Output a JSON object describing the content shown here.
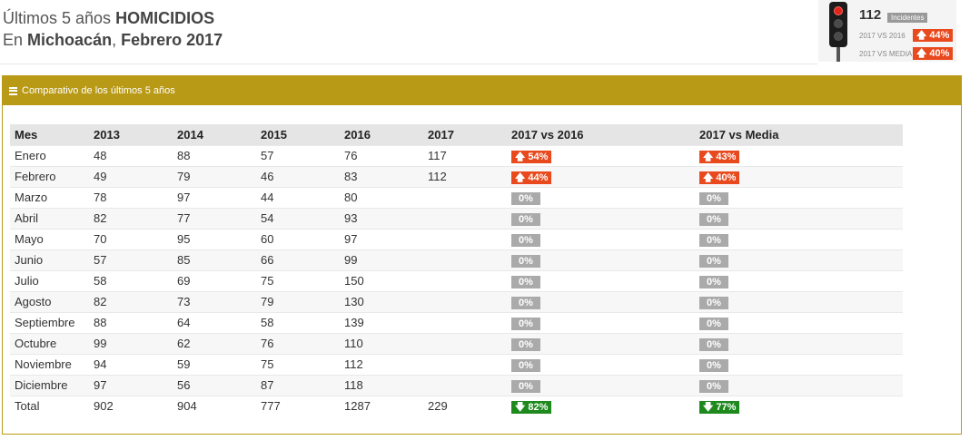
{
  "header": {
    "prefix": "Últimos 5 años",
    "crime": "HOMICIDIOS",
    "in": "En",
    "state": "Michoacán",
    "comma": ",",
    "period": "Febrero 2017"
  },
  "summary": {
    "count": "112",
    "count_label": "Incidentes",
    "vs_2016_label": "2017 VS 2016",
    "vs_2016_value": "🡅 44%",
    "vs_media_label": "2017 VS MEDIA",
    "vs_media_value": "🡅 40%",
    "status_color": "#e0241b"
  },
  "panel": {
    "title": "Comparativo de los últimos 5 años",
    "accent": "#b99a17"
  },
  "table": {
    "columns": [
      "Mes",
      "2013",
      "2014",
      "2015",
      "2016",
      "2017",
      "2017 vs 2016",
      "2017 vs Media"
    ],
    "rows": [
      {
        "mes": "Enero",
        "y2013": "48",
        "y2014": "88",
        "y2015": "57",
        "y2016": "76",
        "y2017": "117",
        "vs2016": "54%",
        "vs2016_dir": "up",
        "vsmedia": "43%",
        "vsmedia_dir": "up"
      },
      {
        "mes": "Febrero",
        "y2013": "49",
        "y2014": "79",
        "y2015": "46",
        "y2016": "83",
        "y2017": "112",
        "vs2016": "44%",
        "vs2016_dir": "up",
        "vsmedia": "40%",
        "vsmedia_dir": "up"
      },
      {
        "mes": "Marzo",
        "y2013": "78",
        "y2014": "97",
        "y2015": "44",
        "y2016": "80",
        "y2017": "",
        "vs2016": "0%",
        "vs2016_dir": "neutral",
        "vsmedia": "0%",
        "vsmedia_dir": "neutral"
      },
      {
        "mes": "Abril",
        "y2013": "82",
        "y2014": "77",
        "y2015": "54",
        "y2016": "93",
        "y2017": "",
        "vs2016": "0%",
        "vs2016_dir": "neutral",
        "vsmedia": "0%",
        "vsmedia_dir": "neutral"
      },
      {
        "mes": "Mayo",
        "y2013": "70",
        "y2014": "95",
        "y2015": "60",
        "y2016": "97",
        "y2017": "",
        "vs2016": "0%",
        "vs2016_dir": "neutral",
        "vsmedia": "0%",
        "vsmedia_dir": "neutral"
      },
      {
        "mes": "Junio",
        "y2013": "57",
        "y2014": "85",
        "y2015": "66",
        "y2016": "99",
        "y2017": "",
        "vs2016": "0%",
        "vs2016_dir": "neutral",
        "vsmedia": "0%",
        "vsmedia_dir": "neutral"
      },
      {
        "mes": "Julio",
        "y2013": "58",
        "y2014": "69",
        "y2015": "75",
        "y2016": "150",
        "y2017": "",
        "vs2016": "0%",
        "vs2016_dir": "neutral",
        "vsmedia": "0%",
        "vsmedia_dir": "neutral"
      },
      {
        "mes": "Agosto",
        "y2013": "82",
        "y2014": "73",
        "y2015": "79",
        "y2016": "130",
        "y2017": "",
        "vs2016": "0%",
        "vs2016_dir": "neutral",
        "vsmedia": "0%",
        "vsmedia_dir": "neutral"
      },
      {
        "mes": "Septiembre",
        "y2013": "88",
        "y2014": "64",
        "y2015": "58",
        "y2016": "139",
        "y2017": "",
        "vs2016": "0%",
        "vs2016_dir": "neutral",
        "vsmedia": "0%",
        "vsmedia_dir": "neutral"
      },
      {
        "mes": "Octubre",
        "y2013": "99",
        "y2014": "62",
        "y2015": "76",
        "y2016": "110",
        "y2017": "",
        "vs2016": "0%",
        "vs2016_dir": "neutral",
        "vsmedia": "0%",
        "vsmedia_dir": "neutral"
      },
      {
        "mes": "Noviembre",
        "y2013": "94",
        "y2014": "59",
        "y2015": "75",
        "y2016": "112",
        "y2017": "",
        "vs2016": "0%",
        "vs2016_dir": "neutral",
        "vsmedia": "0%",
        "vsmedia_dir": "neutral"
      },
      {
        "mes": "Diciembre",
        "y2013": "97",
        "y2014": "56",
        "y2015": "87",
        "y2016": "118",
        "y2017": "",
        "vs2016": "0%",
        "vs2016_dir": "neutral",
        "vsmedia": "0%",
        "vsmedia_dir": "neutral"
      },
      {
        "mes": "Total",
        "y2013": "902",
        "y2014": "904",
        "y2015": "777",
        "y2016": "1287",
        "y2017": "229",
        "vs2016": "82%",
        "vs2016_dir": "down",
        "vsmedia": "77%",
        "vsmedia_dir": "down"
      }
    ]
  },
  "icons": {
    "up": "arrow-up-icon",
    "down": "arrow-down-icon",
    "menu": "menu-icon"
  },
  "colors": {
    "up": "#e8491d",
    "down": "#1e8a1e",
    "neutral": "#aaaaaa"
  }
}
